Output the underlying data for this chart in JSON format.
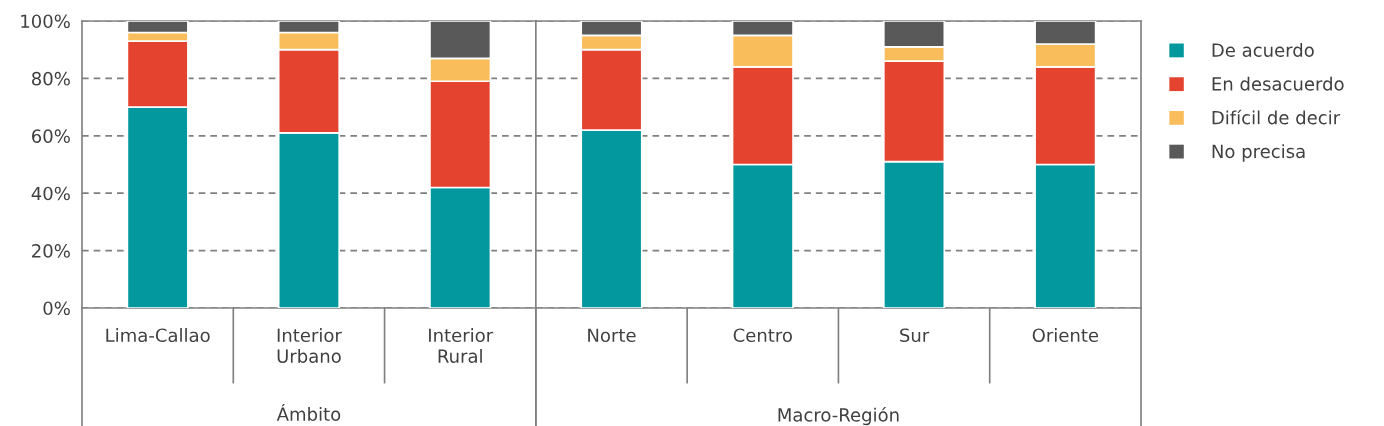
{
  "chart_data": [
    {
      "type": "bar",
      "stacked": true,
      "categories": [
        "Lima-Callao",
        "Interior\nUrbano",
        "Interior\nRural"
      ],
      "series": [
        {
          "color": "#03989e",
          "values": [
            70,
            61,
            42
          ]
        },
        {
          "color": "#e3432f",
          "values": [
            23,
            29,
            37
          ]
        },
        {
          "color": "#f9bd5b",
          "values": [
            3,
            6,
            8
          ]
        },
        {
          "color": "#595959",
          "values": [
            4,
            4,
            13
          ]
        }
      ],
      "ylim": [
        0,
        100
      ],
      "yticks": [
        {
          "value": 0,
          "label": "0%"
        },
        {
          "value": 20,
          "label": "20%"
        },
        {
          "value": 40,
          "label": "40%"
        },
        {
          "value": 60,
          "label": "60%"
        },
        {
          "value": 80,
          "label": "80%"
        },
        {
          "value": 100,
          "label": "100%"
        }
      ],
      "grid": "y",
      "annotations": [
        "Ámbito"
      ]
    },
    {
      "type": "bar",
      "stacked": true,
      "categories": [
        "Norte",
        "Centro",
        "Sur",
        "Oriente"
      ],
      "series": [
        {
          "name": "De acuerdo",
          "color": "#03989e",
          "values": [
            62,
            50,
            51,
            50
          ]
        },
        {
          "name": "En desacuerdo",
          "color": "#e3432f",
          "values": [
            28,
            34,
            35,
            34
          ]
        },
        {
          "name": "Difícil de decir",
          "color": "#f9bd5b",
          "values": [
            5,
            11,
            5,
            8
          ]
        },
        {
          "name": "No precisa",
          "color": "#595959",
          "values": [
            5,
            5,
            9,
            8
          ]
        }
      ],
      "ylim": [
        0,
        100
      ],
      "yticks": [
        0,
        20,
        40,
        60,
        80,
        100
      ],
      "tick_labels": "x",
      "grid": "y",
      "legend": "right",
      "annotations": [
        "Macro-Región"
      ]
    }
  ]
}
